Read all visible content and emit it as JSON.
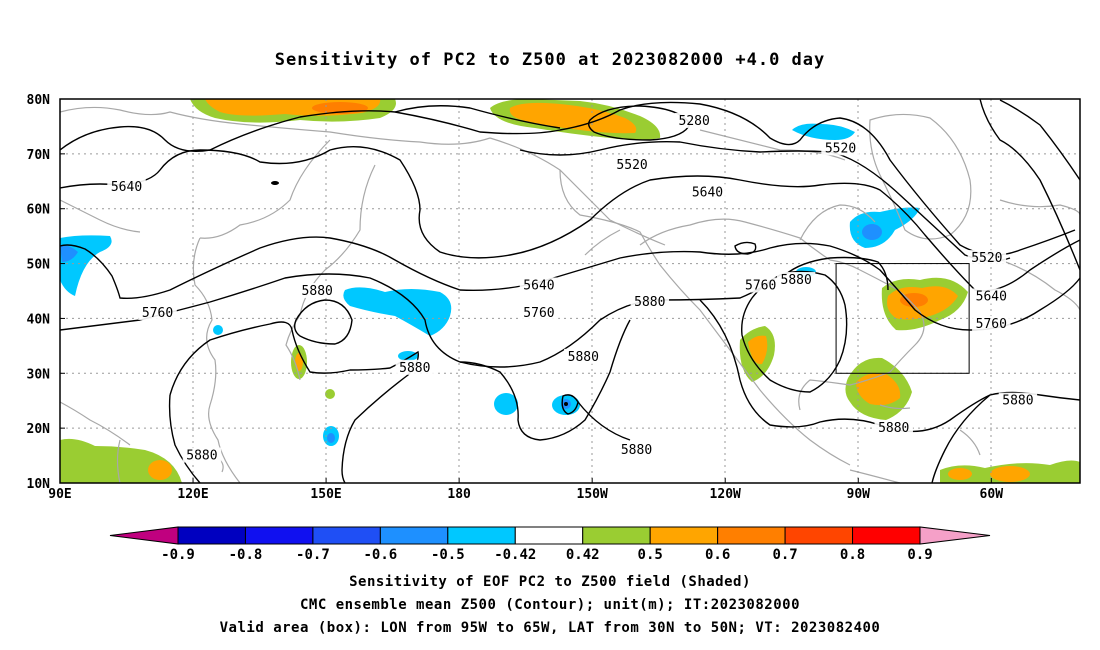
{
  "title": "Sensitivity of PC2 to Z500 at 2023082000 +4.0 day",
  "map": {
    "lat_labels": [
      "80N",
      "70N",
      "60N",
      "50N",
      "40N",
      "30N",
      "20N",
      "10N"
    ],
    "lon_labels": [
      "90E",
      "120E",
      "150E",
      "180",
      "150W",
      "120W",
      "90W",
      "60W"
    ],
    "lon_range_deg_east": [
      90,
      320
    ],
    "lat_range": [
      10,
      80
    ],
    "grid": true,
    "valid_box": {
      "lon_deg_east": [
        265,
        295
      ],
      "lat": [
        30,
        50
      ]
    }
  },
  "contours": {
    "unit": "m",
    "levels": [
      5280,
      5520,
      5640,
      5760,
      5880
    ],
    "labels": [
      {
        "text": "5280",
        "lon": 233,
        "lat": 76
      },
      {
        "text": "5520",
        "lon": 219,
        "lat": 68
      },
      {
        "text": "5520",
        "lon": 266,
        "lat": 71
      },
      {
        "text": "5520",
        "lon": 299,
        "lat": 51
      },
      {
        "text": "5640",
        "lon": 105,
        "lat": 64
      },
      {
        "text": "5640",
        "lon": 236,
        "lat": 63
      },
      {
        "text": "5640",
        "lon": 198,
        "lat": 46
      },
      {
        "text": "5640",
        "lon": 300,
        "lat": 44
      },
      {
        "text": "5760",
        "lon": 112,
        "lat": 41
      },
      {
        "text": "5760",
        "lon": 198,
        "lat": 41
      },
      {
        "text": "5760",
        "lon": 248,
        "lat": 46
      },
      {
        "text": "5760",
        "lon": 300,
        "lat": 39
      },
      {
        "text": "5880",
        "lon": 148,
        "lat": 45
      },
      {
        "text": "5880",
        "lon": 223,
        "lat": 43
      },
      {
        "text": "5880",
        "lon": 208,
        "lat": 33
      },
      {
        "text": "5880",
        "lon": 170,
        "lat": 31
      },
      {
        "text": "5880",
        "lon": 122,
        "lat": 15
      },
      {
        "text": "5880",
        "lon": 220,
        "lat": 16
      },
      {
        "text": "5880",
        "lon": 256,
        "lat": 47
      },
      {
        "text": "5880",
        "lon": 278,
        "lat": 20
      },
      {
        "text": "5880",
        "lon": 306,
        "lat": 25
      }
    ]
  },
  "shading": {
    "colors": {
      "neg_lt_-0.9": "#c0007f",
      "-0.9_-0.8": "#0000c0",
      "-0.8_-0.7": "#1010f0",
      "-0.7_-0.6": "#1f4ff5",
      "-0.6_-0.5": "#1e90ff",
      "-0.5_-0.42": "#00c8ff",
      "-0.42_0.42": "#ffffff",
      "0.42_0.5": "#9acd32",
      "0.5_0.6": "#ffa500",
      "0.6_0.7": "#ff7f00",
      "0.7_0.8": "#ff4500",
      "0.8_0.9": "#ff0000",
      "gt_0.9": "#f5a0c8"
    }
  },
  "colorbar": {
    "tick_labels": [
      "-0.9",
      "-0.8",
      "-0.7",
      "-0.6",
      "-0.5",
      "-0.42",
      "0.42",
      "0.5",
      "0.6",
      "0.7",
      "0.8",
      "0.9"
    ],
    "colors": [
      "#0000c0",
      "#1010f0",
      "#1f4ff5",
      "#1e90ff",
      "#00c8ff",
      "#ffffff",
      "#9acd32",
      "#ffa500",
      "#ff7f00",
      "#ff4500",
      "#ff0000"
    ],
    "low_color": "#c0007f",
    "high_color": "#f5a0c8"
  },
  "captions": {
    "line1": "Sensitivity of EOF PC2 to Z500 field (Shaded)",
    "line2": "CMC ensemble mean Z500 (Contour); unit(m); IT:2023082000",
    "line3": "Valid area (box): LON from 95W to 65W, LAT from 30N to 50N; VT: 2023082400"
  }
}
